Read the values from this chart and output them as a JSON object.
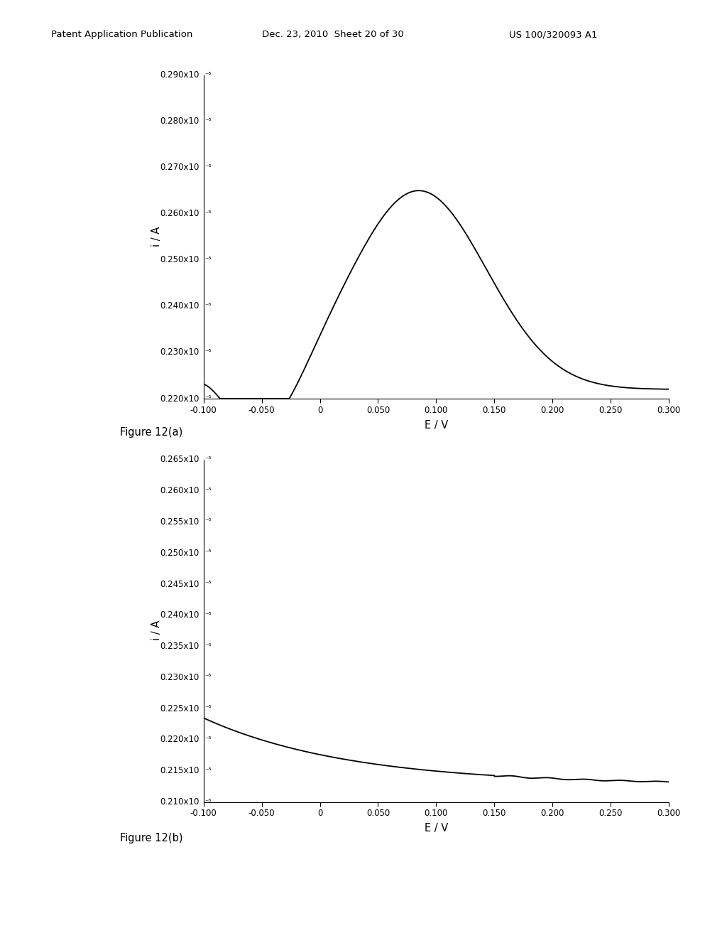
{
  "header_left": "Patent Application Publication",
  "header_mid": "Dec. 23, 2010  Sheet 20 of 30",
  "header_right": "US 100/320093 A1",
  "fig_a_caption": "Figure 12(a)",
  "fig_b_caption": "Figure 12(b)",
  "fig_a": {
    "xlabel": "E / V",
    "ylabel": "i / A",
    "xlim": [
      -0.1,
      0.3
    ],
    "ylim": [
      2.2e-06,
      2.9e-06
    ],
    "ytick_vals": [
      2.2e-06,
      2.3e-06,
      2.4e-06,
      2.5e-06,
      2.6e-06,
      2.7e-06,
      2.8e-06,
      2.9e-06
    ],
    "ytick_labels": [
      "0.220x10 ⁻⁵",
      "0.230x10 ⁻⁵",
      "0.240x10 ⁻⁵",
      "0.250x10 ⁻⁵",
      "0.260x10 ⁻⁵",
      "0.270x10 ⁻⁵",
      "0.280x10 ⁻⁵",
      "0.290x10 ⁻⁵"
    ],
    "xtick_vals": [
      -0.1,
      -0.05,
      0.0,
      0.05,
      0.1,
      0.15,
      0.2,
      0.25,
      0.3
    ],
    "xtick_labels": [
      "-0.100",
      "-0.050",
      "0",
      "0.050",
      "0.100",
      "0.150",
      "0.200",
      "0.250",
      "0.300"
    ]
  },
  "fig_b": {
    "xlabel": "E / V",
    "ylabel": "i / A",
    "xlim": [
      -0.1,
      0.3
    ],
    "ylim": [
      2.1e-06,
      2.65e-06
    ],
    "ytick_vals": [
      2.1e-06,
      2.15e-06,
      2.2e-06,
      2.25e-06,
      2.3e-06,
      2.35e-06,
      2.4e-06,
      2.45e-06,
      2.5e-06,
      2.55e-06,
      2.6e-06,
      2.65e-06
    ],
    "ytick_labels": [
      "0.210x10 ⁻⁵",
      "0.215x10 ⁻⁵",
      "0.220x10 ⁻⁵",
      "0.225x10 ⁻⁵",
      "0.230x10 ⁻⁵",
      "0.235x10 ⁻⁵",
      "0.240x10 ⁻⁵",
      "0.245x10 ⁻⁵",
      "0.250x10 ⁻⁵",
      "0.255x10 ⁻⁵",
      "0.260x10 ⁻⁵",
      "0.265x10 ⁻⁵"
    ],
    "xtick_vals": [
      -0.1,
      -0.05,
      0.0,
      0.05,
      0.1,
      0.15,
      0.2,
      0.25,
      0.3
    ],
    "xtick_labels": [
      "-0.100",
      "-0.050",
      "0",
      "0.050",
      "0.100",
      "0.150",
      "0.200",
      "0.250",
      "0.300"
    ]
  },
  "line_color": "#000000",
  "background_color": "#ffffff"
}
